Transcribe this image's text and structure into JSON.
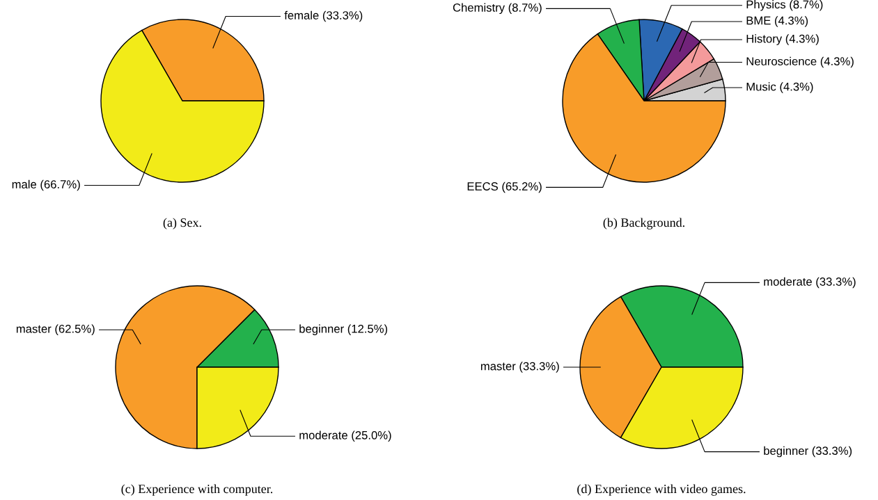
{
  "chart_data": [
    {
      "type": "pie",
      "title": "(a) Sex.",
      "categories": [
        "female (33.3%)",
        "male (66.7%)"
      ],
      "values": [
        33.3,
        66.7
      ],
      "colors": [
        "#f89c29",
        "#f2eb18"
      ]
    },
    {
      "type": "pie",
      "title": "(b) Background.",
      "categories": [
        "Music (4.3%)",
        "Neuroscience (4.3%)",
        "History (4.3%)",
        "BME (4.3%)",
        "Physics (8.7%)",
        "Chemistry (8.7%)",
        "EECS (65.2%)"
      ],
      "values": [
        4.3,
        4.3,
        4.3,
        4.3,
        8.7,
        8.7,
        65.2
      ],
      "colors": [
        "#d3d3d3",
        "#b29e9b",
        "#f49a9b",
        "#71237a",
        "#2b68b3",
        "#23b14c",
        "#f89c29"
      ]
    },
    {
      "type": "pie",
      "title": "(c) Experience with computer.",
      "categories": [
        "beginner (12.5%)",
        "master (62.5%)",
        "moderate (25.0%)"
      ],
      "values": [
        12.5,
        62.5,
        25.0
      ],
      "colors": [
        "#23b14c",
        "#f89c29",
        "#f2eb18"
      ]
    },
    {
      "type": "pie",
      "title": "(d) Experience with video games.",
      "categories": [
        "moderate (33.3%)",
        "master (33.3%)",
        "beginner (33.3%)"
      ],
      "values": [
        33.3,
        33.3,
        33.3
      ],
      "colors": [
        "#23b14c",
        "#f89c29",
        "#f2eb18"
      ]
    }
  ]
}
